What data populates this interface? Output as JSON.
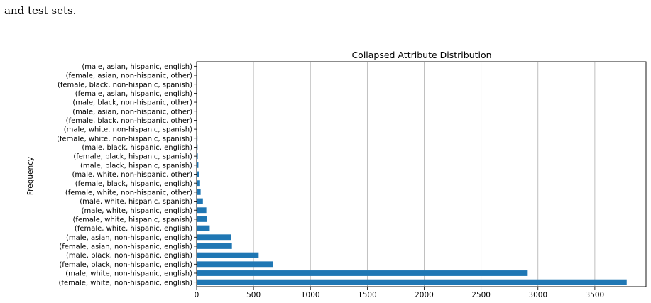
{
  "caption": {
    "text": "and test sets."
  },
  "chart_data": {
    "type": "bar",
    "orientation": "horizontal",
    "title": "Collapsed Attribute Distribution",
    "xlabel": "",
    "ylabel": "Frequency",
    "xlim": [
      0,
      3950
    ],
    "x_ticks": [
      0,
      500,
      1000,
      1500,
      2000,
      2500,
      3000,
      3500
    ],
    "grid": "vertical lines at x ticks",
    "bar_color": "#1f77b4",
    "categories": [
      "(male, asian, hispanic, english)",
      "(female, asian, non-hispanic, other)",
      "(female, black, non-hispanic, spanish)",
      "(female, asian, hispanic, english)",
      "(male, black, non-hispanic, other)",
      "(male, asian, non-hispanic, other)",
      "(female, black, non-hispanic, other)",
      "(male, white, non-hispanic, spanish)",
      "(female, white, non-hispanic, spanish)",
      "(male, black, hispanic, english)",
      "(female, black, hispanic, spanish)",
      "(male, black, hispanic, spanish)",
      "(male, white, non-hispanic, other)",
      "(female, black, hispanic, english)",
      "(female, white, non-hispanic, other)",
      "(male, white, hispanic, spanish)",
      "(male, white, hispanic, english)",
      "(female, white, hispanic, spanish)",
      "(female, white, hispanic, english)",
      "(male, asian, non-hispanic, english)",
      "(female, asian, non-hispanic, english)",
      "(male, black, non-hispanic, english)",
      "(female, black, non-hispanic, english)",
      "(male, white, non-hispanic, english)",
      "(female, white, non-hispanic, english)"
    ],
    "values": [
      1,
      1,
      2,
      2,
      3,
      3,
      4,
      6,
      7,
      8,
      10,
      15,
      22,
      30,
      35,
      55,
      85,
      90,
      115,
      305,
      310,
      545,
      670,
      2910,
      3780
    ]
  }
}
